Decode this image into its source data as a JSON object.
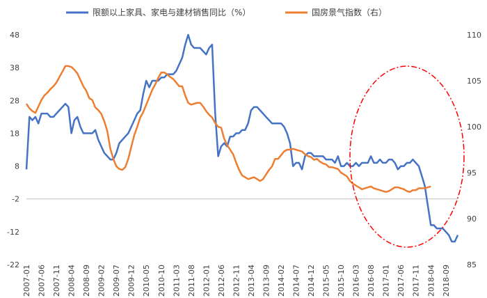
{
  "chart_data": {
    "type": "line",
    "series": [
      {
        "name": "限额以上家具、家电与建材销售同比（%）",
        "axis": "left",
        "color": "#4472C4",
        "values": [
          7,
          23,
          22,
          23,
          21,
          24,
          24,
          24,
          23,
          23,
          24,
          25,
          26,
          27,
          26,
          18,
          22,
          23,
          20,
          18,
          18,
          18,
          18,
          19,
          16,
          14,
          12,
          11,
          10,
          10,
          12,
          15,
          16,
          17,
          18,
          20,
          22,
          24,
          25,
          30,
          34,
          32,
          34,
          34,
          34,
          35,
          35,
          36,
          36,
          36,
          37,
          39,
          41,
          45,
          48,
          45,
          44,
          44,
          44,
          43,
          42,
          44,
          45,
          24,
          11,
          14,
          15,
          14,
          17,
          17,
          18,
          18,
          19,
          19,
          21,
          25,
          26,
          26,
          25,
          24,
          23,
          22,
          21,
          21,
          21,
          21,
          20,
          18,
          15,
          8,
          9,
          9,
          7,
          11,
          12,
          12,
          11,
          11,
          11,
          11,
          10,
          10,
          10,
          9,
          11,
          8,
          8,
          9,
          8,
          8,
          9,
          8,
          9,
          9,
          9,
          11,
          9,
          9,
          10,
          9,
          9,
          10,
          10,
          9,
          7,
          8,
          8,
          9,
          9,
          10,
          9,
          8,
          5,
          2,
          -4,
          -10,
          -10,
          -11,
          -11,
          -11,
          -12,
          -13,
          -15,
          -15,
          -13
        ]
      },
      {
        "name": "国房景气指数（右）",
        "axis": "right",
        "color": "#ED7D31",
        "values": [
          102.5,
          102,
          101.7,
          101.5,
          102.2,
          102.9,
          103.4,
          103.7,
          104.1,
          104.4,
          104.8,
          105.4,
          106,
          106.6,
          106.6,
          106.5,
          106.2,
          105.8,
          105.1,
          104.4,
          103.9,
          103.1,
          102.9,
          102.1,
          101.8,
          101.4,
          100.6,
          99.5,
          97.6,
          96.5,
          95.7,
          95.4,
          95.3,
          95.6,
          96.5,
          97.8,
          99.1,
          100,
          101,
          101.6,
          102.4,
          103.2,
          104,
          104.6,
          105.3,
          105.9,
          105.9,
          105.7,
          105.4,
          105.2,
          104.8,
          104.4,
          104.4,
          103.4,
          102.6,
          102.4,
          102.5,
          102.6,
          102.6,
          102.2,
          101.7,
          101.3,
          101,
          100.4,
          100,
          99.9,
          98.7,
          98,
          97.5,
          97,
          96.1,
          95.3,
          94.7,
          94.5,
          94.3,
          94.4,
          94.5,
          94.3,
          94.1,
          94.3,
          94.8,
          95.3,
          95.7,
          96.5,
          96.5,
          96.9,
          97.3,
          97.5,
          97.5,
          97.6,
          97.5,
          97.4,
          97.3,
          97.0,
          96.8,
          96.7,
          96.4,
          96.5,
          96.2,
          96.0,
          95.9,
          95.6,
          95.6,
          95.5,
          95.4,
          95.0,
          94.8,
          94.6,
          94.1,
          93.8,
          93.6,
          93.4,
          93.2,
          93.3,
          93.4,
          93.5,
          93.3,
          93.2,
          93.1,
          93.0,
          92.9,
          93.0,
          93.2,
          93.4,
          93.4,
          93.3,
          93.2,
          93.0,
          92.9,
          93.1,
          93.1,
          93.3,
          93.3,
          93.3,
          93.4,
          93.5
        ]
      }
    ],
    "left_axis": {
      "ticks": [
        48,
        38,
        28,
        18,
        8,
        -2,
        -12,
        -22
      ],
      "ylim": [
        -22,
        48
      ]
    },
    "right_axis": {
      "ticks": [
        110,
        105,
        100,
        95,
        90,
        85
      ],
      "ylim": [
        85,
        110
      ]
    },
    "x_tick_labels": [
      "2007-01",
      "2007-06",
      "2007-11",
      "2008-04",
      "2008-09",
      "2009-02",
      "2009-07",
      "2009-12",
      "2010-05",
      "2010-10",
      "2011-03",
      "2011-08",
      "2012-01",
      "2012-06",
      "2012-11",
      "2013-04",
      "2013-09",
      "2014-02",
      "2014-07",
      "2014-12",
      "2015-05",
      "2015-10",
      "2016-03",
      "2016-08",
      "2017-01",
      "2017-06",
      "2017-11",
      "2018-04",
      "2018-09"
    ],
    "annotation": {
      "shape": "ellipse",
      "style": "dash-dot",
      "color": "#FF0000",
      "from": "2015-10",
      "to": "2018-09"
    },
    "legend_position": "top"
  }
}
